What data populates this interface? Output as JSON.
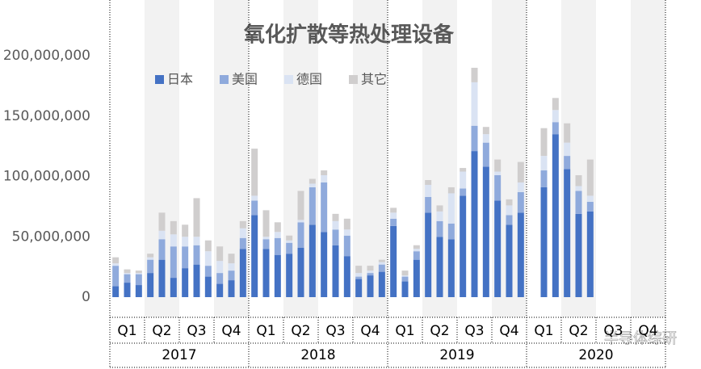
{
  "chart_data": {
    "type": "stacked-bar",
    "title": "氧化扩散等热处理设备",
    "categories": [
      null,
      null,
      null,
      null,
      null,
      null,
      null,
      null,
      null,
      null,
      null,
      null,
      null,
      null,
      null,
      null,
      null,
      null,
      null,
      null,
      null,
      null,
      null,
      null,
      null,
      null,
      null,
      null,
      null,
      null,
      null,
      null,
      null,
      null,
      null,
      null,
      null,
      null,
      null,
      null,
      null,
      null,
      null,
      null,
      null,
      null,
      null,
      null
    ],
    "quarters": [
      "Q1",
      "Q2",
      "Q3",
      "Q4",
      "Q1",
      "Q2",
      "Q3",
      "Q4",
      "Q1",
      "Q2",
      "Q3",
      "Q4",
      "Q1",
      "Q2",
      "Q3",
      "Q4"
    ],
    "years": [
      "2017",
      "2018",
      "2019",
      "2020"
    ],
    "series": [
      {
        "name": "日本",
        "color": "#4472c4",
        "values": [
          9000000,
          12000000,
          10000000,
          20000000,
          31000000,
          16000000,
          24000000,
          27000000,
          17000000,
          11000000,
          14000000,
          40000000,
          68000000,
          40000000,
          35000000,
          36000000,
          41000000,
          60000000,
          54000000,
          43000000,
          34000000,
          15000000,
          18000000,
          21000000,
          59000000,
          13000000,
          31000000,
          70000000,
          50000000,
          48000000,
          84000000,
          121000000,
          108000000,
          80000000,
          60000000,
          70000000,
          null,
          91000000,
          135000000,
          106000000,
          69000000,
          71000000,
          null,
          null,
          null,
          null,
          null,
          null
        ]
      },
      {
        "name": "美国",
        "color": "#8faadc",
        "values": [
          17000000,
          7000000,
          9000000,
          11000000,
          17000000,
          26000000,
          18000000,
          16000000,
          9000000,
          9000000,
          8000000,
          9000000,
          12000000,
          8000000,
          14000000,
          9000000,
          21000000,
          31000000,
          41000000,
          13000000,
          17000000,
          2000000,
          2000000,
          6000000,
          6000000,
          4000000,
          7000000,
          13000000,
          13000000,
          13000000,
          6000000,
          21000000,
          20000000,
          21000000,
          8000000,
          17000000,
          null,
          14000000,
          10000000,
          11000000,
          19000000,
          8000000,
          null,
          null,
          null,
          null,
          null,
          null
        ]
      },
      {
        "name": "德国",
        "color": "#dae3f3",
        "values": [
          2000000,
          1000000,
          1000000,
          2000000,
          7000000,
          10000000,
          8000000,
          7000000,
          12000000,
          10000000,
          6000000,
          8000000,
          4000000,
          2000000,
          5000000,
          2000000,
          2000000,
          3000000,
          6000000,
          7000000,
          5000000,
          3000000,
          2000000,
          2000000,
          5000000,
          1000000,
          2000000,
          10000000,
          8000000,
          25000000,
          14000000,
          36000000,
          7000000,
          3000000,
          8000000,
          8000000,
          null,
          12000000,
          10000000,
          11000000,
          4000000,
          5000000,
          null,
          null,
          null,
          null,
          null,
          null
        ]
      },
      {
        "name": "其它",
        "color": "#d0cece",
        "values": [
          5000000,
          3000000,
          2000000,
          3000000,
          15000000,
          11000000,
          10000000,
          32000000,
          9000000,
          12000000,
          8000000,
          6000000,
          39000000,
          22000000,
          8000000,
          4000000,
          24000000,
          4000000,
          4000000,
          6000000,
          9000000,
          6000000,
          4000000,
          2000000,
          4000000,
          4000000,
          3000000,
          4000000,
          5000000,
          5000000,
          3000000,
          12000000,
          6000000,
          10000000,
          5000000,
          17000000,
          null,
          23000000,
          10000000,
          16000000,
          9000000,
          30000000,
          null,
          null,
          null,
          null,
          null,
          null
        ]
      }
    ],
    "ylim": [
      0,
      200000000
    ],
    "yticks": [
      0,
      {
        "value": 50000000,
        "label": "50,000,000"
      },
      {
        "value": 100000000,
        "label": "100,000,000"
      },
      {
        "value": 150000000,
        "label": "150,000,000"
      },
      {
        "value": 200000000,
        "label": "200,000,000"
      }
    ],
    "grid": false,
    "legend": "top-left",
    "watermark": "半导体综研"
  }
}
